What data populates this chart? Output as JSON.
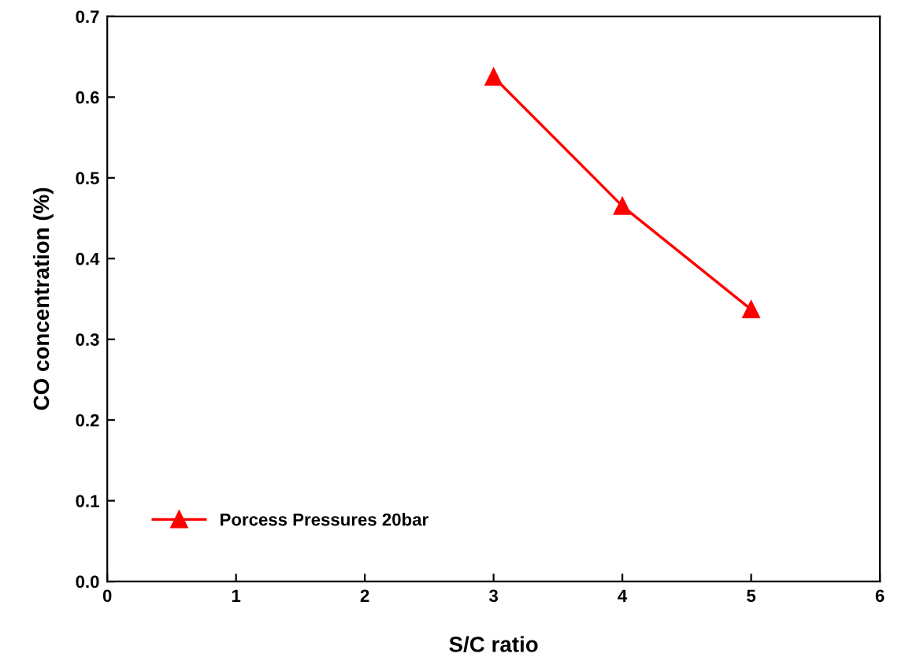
{
  "chart_data": {
    "type": "line",
    "xlabel": "S/C ratio",
    "ylabel": "CO concentration (%)",
    "x": [
      3,
      4,
      5
    ],
    "series": [
      {
        "name": "Porcess Pressures 20bar",
        "color": "#ff0000",
        "values": [
          0.625,
          0.465,
          0.337
        ]
      }
    ],
    "xlim": [
      0,
      6
    ],
    "xticks": [
      0,
      1,
      2,
      3,
      4,
      5,
      6
    ],
    "ylim": [
      0,
      0.7
    ],
    "yticks": [
      {
        "value": 0,
        "label": "0.0"
      },
      0.1,
      0.2,
      0.3,
      0.4,
      0.5,
      0.6,
      0.7
    ],
    "grid": false,
    "legend": "bottom left",
    "marker": "triangle",
    "line_style": "solid"
  }
}
